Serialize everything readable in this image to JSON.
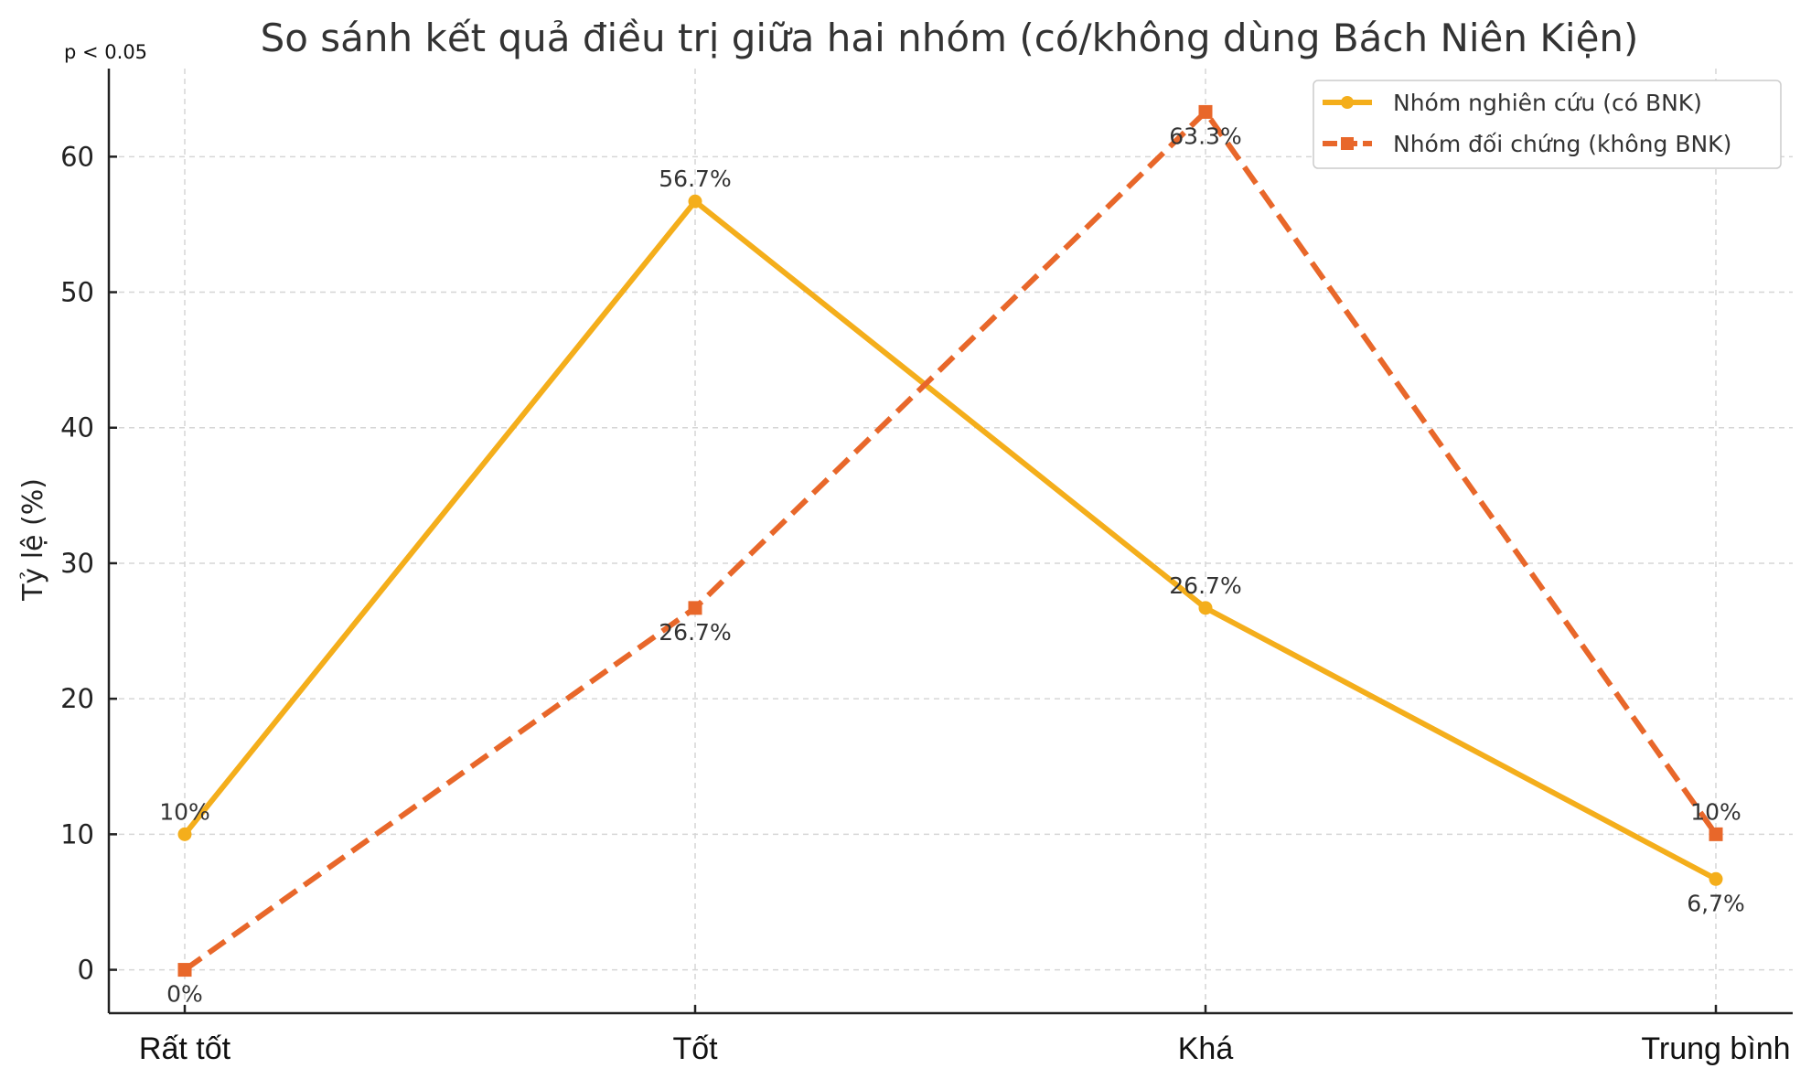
{
  "chart_data": {
    "type": "line",
    "title": "So sánh kết quả điều trị giữa hai nhóm (có/không dùng Bách Niên Kiện)",
    "annotation": "p < 0.05",
    "xlabel": "",
    "ylabel": "Tỷ lệ (%)",
    "categories": [
      "Rất tốt",
      "Tốt",
      "Khá",
      "Trung bình"
    ],
    "ylim": [
      -3.2,
      66.5
    ],
    "yticks": [
      0,
      10,
      20,
      30,
      40,
      50,
      60
    ],
    "grid": true,
    "legend": "top-right",
    "series": [
      {
        "name": "Nhóm nghiên cứu (có BNK)",
        "values": [
          10,
          56.7,
          26.7,
          6.7
        ],
        "labels": [
          "10%",
          "56.7%",
          "26.7%",
          "6,7%"
        ],
        "label_pos": [
          "above",
          "above",
          "above",
          "below"
        ],
        "color": "#F4AE1B",
        "marker": "circle",
        "line": "solid"
      },
      {
        "name": "Nhóm đối chứng (không BNK)",
        "values": [
          0,
          26.7,
          63.3,
          10
        ],
        "labels": [
          "0%",
          "26.7%",
          "63.3%",
          "10%"
        ],
        "label_pos": [
          "below",
          "below",
          "below",
          "above"
        ],
        "color": "#E8672A",
        "marker": "square",
        "line": "dashed"
      }
    ]
  }
}
